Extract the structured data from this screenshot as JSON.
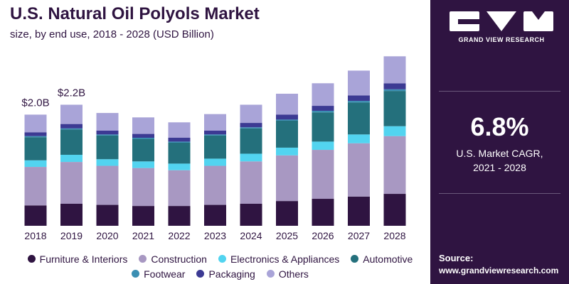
{
  "header": {
    "title": "U.S. Natural Oil Polyols Market",
    "subtitle": "size, by end use, 2018 - 2028 (USD Billion)"
  },
  "chart_data": {
    "type": "bar",
    "stacked": true,
    "categories": [
      "2018",
      "2019",
      "2020",
      "2021",
      "2022",
      "2023",
      "2024",
      "2025",
      "2026",
      "2027",
      "2028"
    ],
    "series": [
      {
        "name": "Furniture & Interiors",
        "color": "#2f1441",
        "values": [
          0.37,
          0.4,
          0.38,
          0.36,
          0.36,
          0.38,
          0.4,
          0.45,
          0.49,
          0.53,
          0.58
        ]
      },
      {
        "name": "Construction",
        "color": "#a898c2",
        "values": [
          0.7,
          0.76,
          0.71,
          0.69,
          0.65,
          0.71,
          0.77,
          0.83,
          0.89,
          0.97,
          1.05
        ]
      },
      {
        "name": "Electronics & Appliances",
        "color": "#52d4f0",
        "values": [
          0.12,
          0.13,
          0.12,
          0.12,
          0.12,
          0.13,
          0.14,
          0.14,
          0.15,
          0.16,
          0.18
        ]
      },
      {
        "name": "Automotive",
        "color": "#24707c",
        "values": [
          0.42,
          0.46,
          0.43,
          0.41,
          0.38,
          0.42,
          0.46,
          0.49,
          0.53,
          0.58,
          0.64
        ]
      },
      {
        "name": "Footwear",
        "color": "#3b8fb3",
        "values": [
          0.02,
          0.02,
          0.02,
          0.02,
          0.02,
          0.02,
          0.02,
          0.02,
          0.03,
          0.03,
          0.03
        ]
      },
      {
        "name": "Packaging",
        "color": "#3c3a93",
        "values": [
          0.07,
          0.08,
          0.07,
          0.07,
          0.07,
          0.07,
          0.08,
          0.09,
          0.09,
          0.1,
          0.11
        ]
      },
      {
        "name": "Others",
        "color": "#a9a4d8",
        "values": [
          0.32,
          0.35,
          0.32,
          0.3,
          0.28,
          0.3,
          0.33,
          0.38,
          0.41,
          0.45,
          0.49
        ]
      }
    ],
    "annotations": [
      {
        "category": "2018",
        "text": "$2.0B"
      },
      {
        "category": "2019",
        "text": "$2.2B"
      }
    ],
    "ylim": [
      0,
      3.2
    ],
    "grid": false,
    "legend": "bottom"
  },
  "sidebar": {
    "brand_name": "GRAND VIEW RESEARCH",
    "cagr_value": "6.8%",
    "cagr_label_line1": "U.S. Market CAGR,",
    "cagr_label_line2": "2021 - 2028",
    "source_label": "Source:",
    "source_url": "www.grandviewresearch.com"
  }
}
